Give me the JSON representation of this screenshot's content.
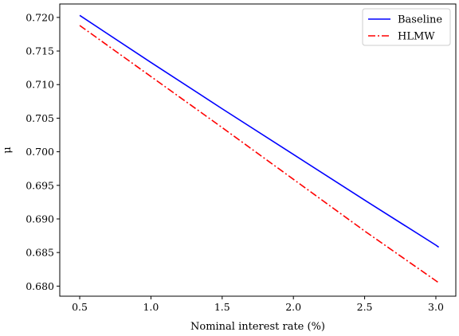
{
  "chart_data": {
    "type": "line",
    "title": "",
    "xlabel": "Nominal interest rate (%)",
    "ylabel": "μ",
    "xlim": [
      0.36,
      3.14
    ],
    "ylim": [
      0.6785,
      0.722
    ],
    "xticks": [
      0.5,
      1.0,
      1.5,
      2.0,
      2.5,
      3.0
    ],
    "xtick_labels": [
      "0.5",
      "1.0",
      "1.5",
      "2.0",
      "2.5",
      "3.0"
    ],
    "yticks": [
      0.68,
      0.685,
      0.69,
      0.695,
      0.7,
      0.705,
      0.71,
      0.715,
      0.72
    ],
    "ytick_labels": [
      "0.680",
      "0.685",
      "0.690",
      "0.695",
      "0.700",
      "0.705",
      "0.710",
      "0.715",
      "0.720"
    ],
    "legend_position": "top-right",
    "grid": false,
    "series": [
      {
        "name": "Baseline",
        "color": "#0000ff",
        "style": "solid",
        "x": [
          0.5,
          1.0,
          1.5,
          2.0,
          2.5,
          3.0,
          3.02
        ],
        "y": [
          0.7203,
          0.7133,
          0.7064,
          0.6996,
          0.6928,
          0.6861,
          0.6858
        ]
      },
      {
        "name": "HLMW",
        "color": "#ff0000",
        "style": "dashdot",
        "x": [
          0.5,
          1.0,
          1.5,
          2.0,
          2.5,
          3.0,
          3.02
        ],
        "y": [
          0.7188,
          0.7112,
          0.7036,
          0.6959,
          0.6882,
          0.6808,
          0.6805
        ]
      }
    ]
  }
}
